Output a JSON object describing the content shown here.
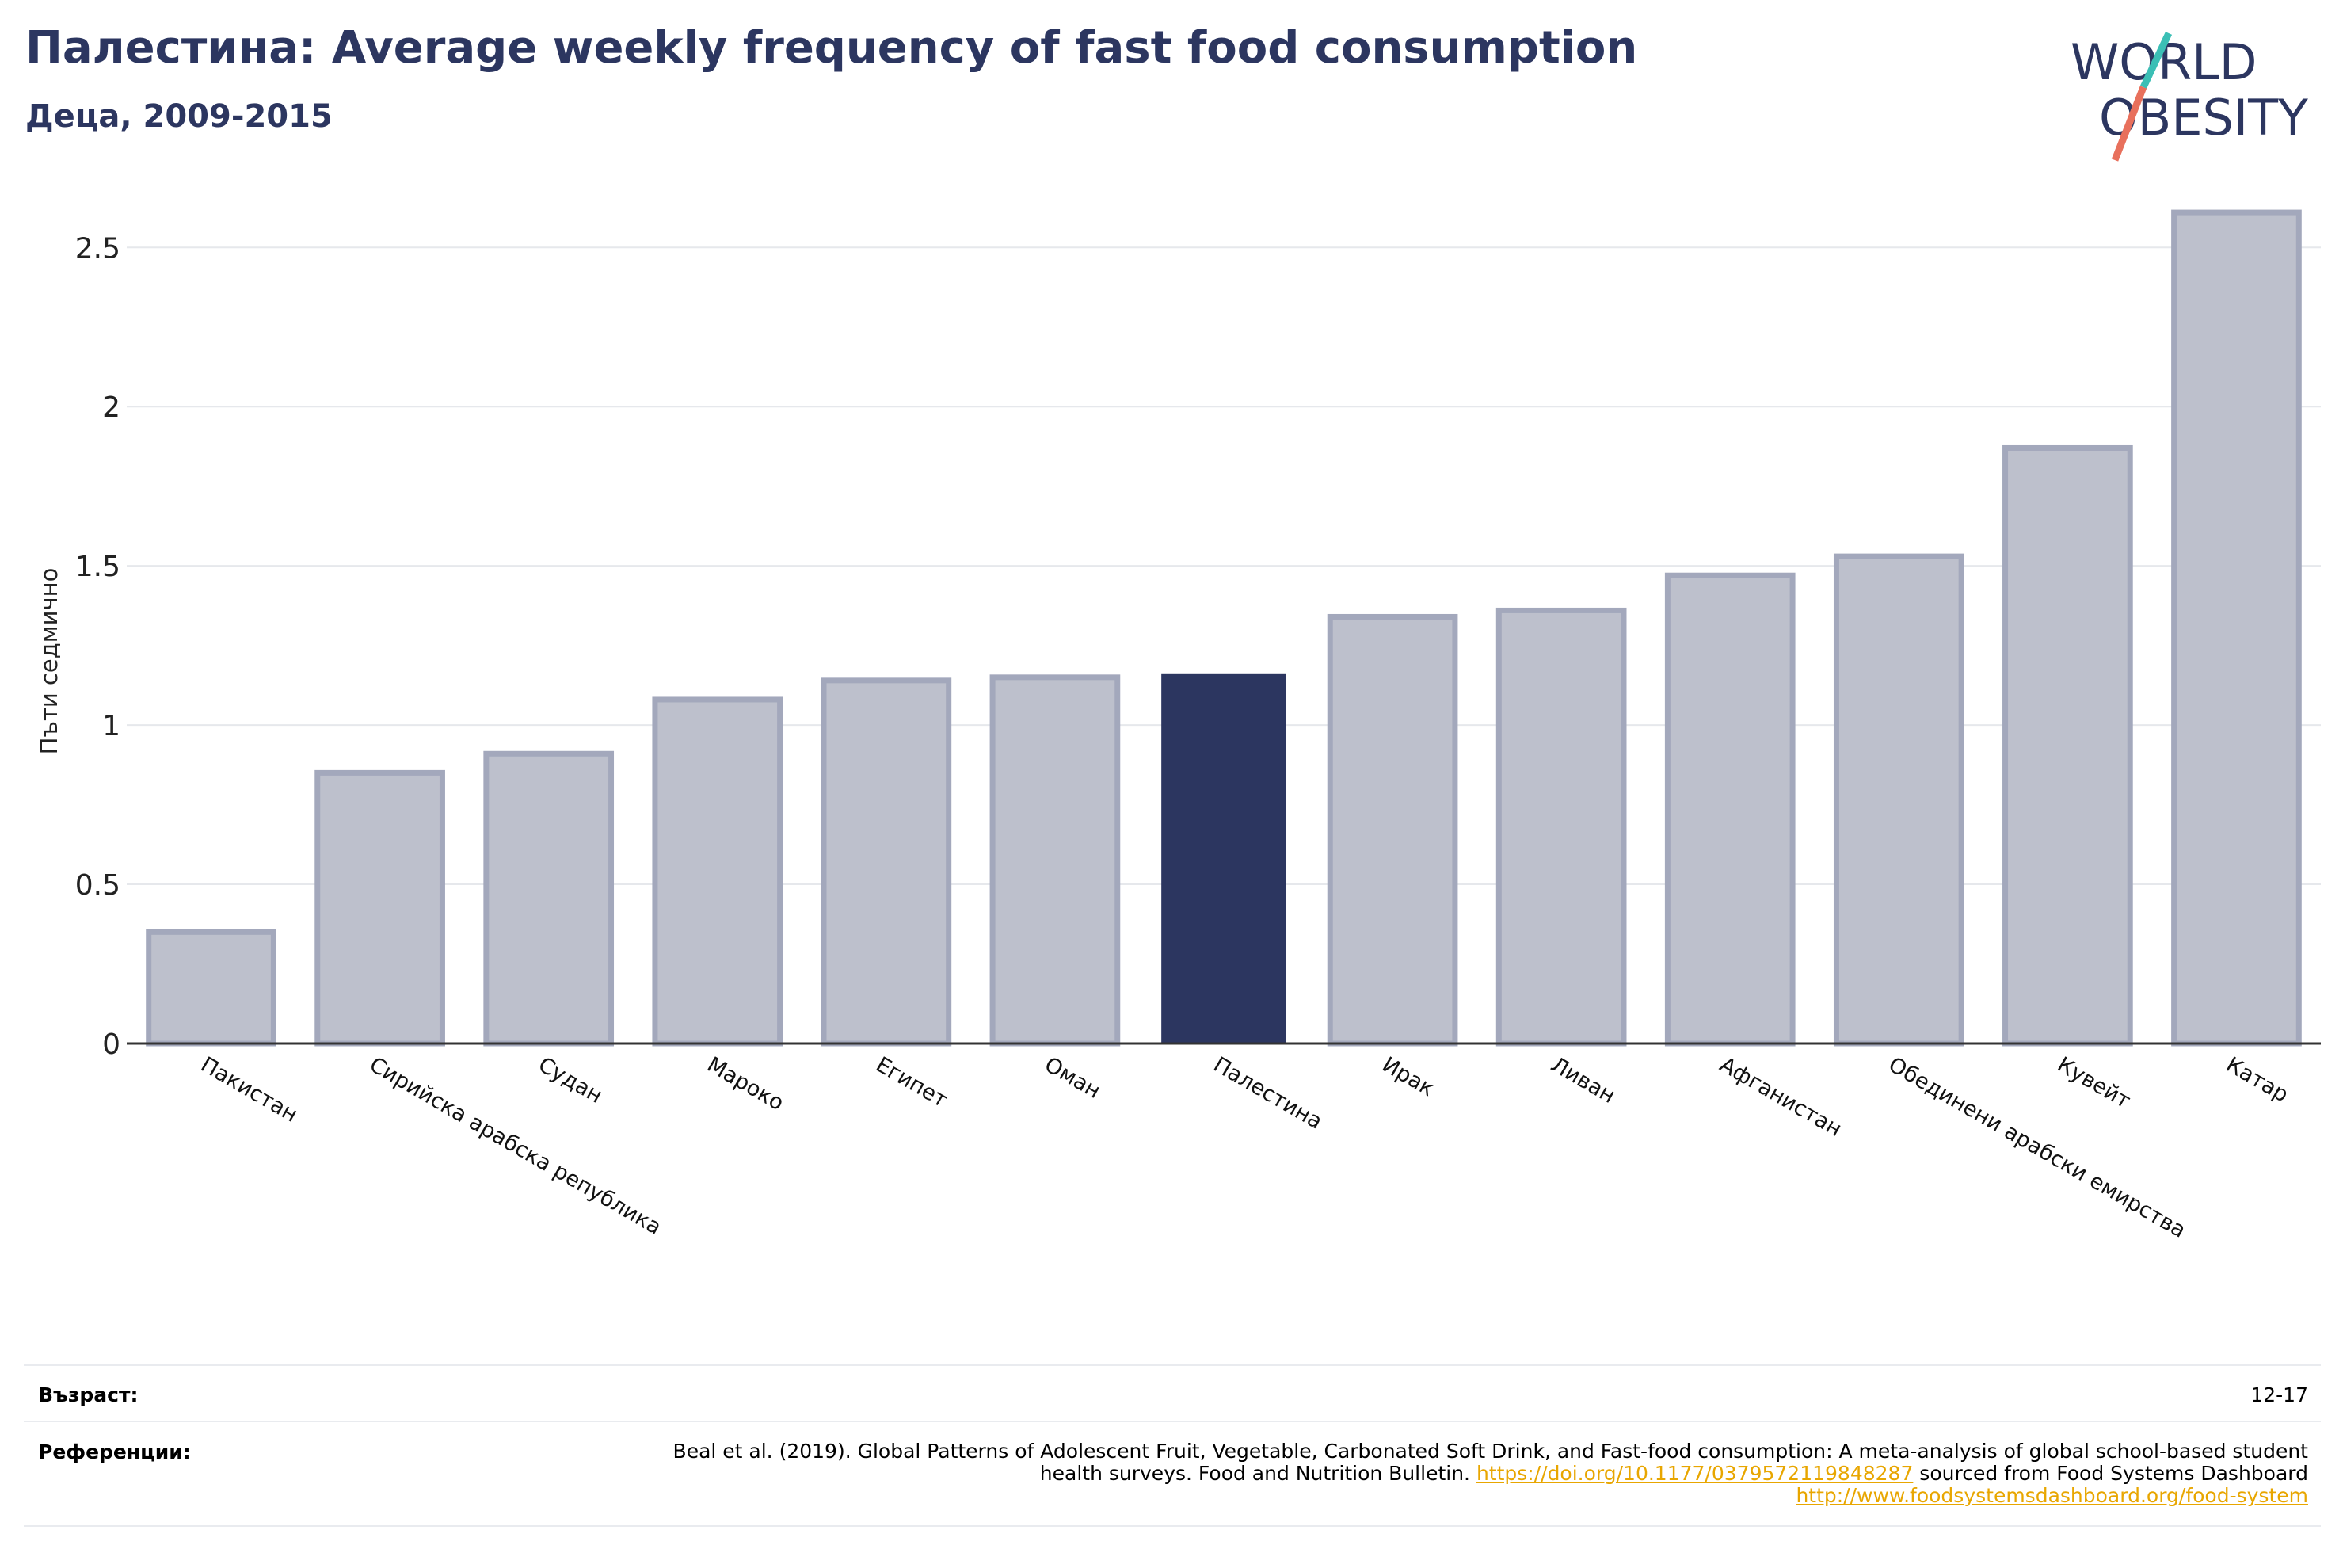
{
  "header": {
    "title": "Палестина: Average weekly frequency of fast food consumption",
    "subtitle": "Деца, 2009-2015"
  },
  "logo": {
    "line1": "WORLD",
    "line2": "OBESITY",
    "icon": "world-obesity-logo"
  },
  "colors": {
    "highlight": "#2c3660",
    "bar_fill": "#bdc0cc",
    "bar_stroke": "#a3a8bc",
    "logo_navy": "#2c3660",
    "logo_teal": "#3bbfb5",
    "logo_coral": "#e8705c",
    "link": "#e8a600"
  },
  "chart_data": {
    "type": "bar",
    "categories": [
      "Пакистан",
      "Сирийска арабска република",
      "Судан",
      "Мароко",
      "Египет",
      "Оман",
      "Палестина",
      "Ирак",
      "Ливан",
      "Афганистан",
      "Обединени арабски емирства",
      "Кувейт",
      "Катар"
    ],
    "values": [
      0.35,
      0.85,
      0.91,
      1.08,
      1.14,
      1.15,
      1.16,
      1.34,
      1.36,
      1.47,
      1.53,
      1.87,
      2.61
    ],
    "highlight": "Палестина",
    "title": "Палестина: Average weekly frequency of fast food consumption",
    "subtitle": "Деца, 2009-2015",
    "xlabel": "",
    "ylabel": "Пъти седмично",
    "ylim": [
      0,
      2.65
    ],
    "yticks": [
      0,
      0.5,
      1,
      1.5,
      2,
      2.5
    ],
    "ytick_labels": [
      "0",
      "0.5",
      "1",
      "1.5",
      "2",
      "2.5"
    ],
    "grid": true
  },
  "meta": {
    "age_label": "Възраст:",
    "age_value": "12-17",
    "ref_label": "Референции:",
    "ref_text1": "Beal et al. (2019). Global Patterns of Adolescent Fruit, Vegetable, Carbonated Soft Drink, and Fast-food consumption: A meta-analysis of global school-based student health surveys. Food and Nutrition Bulletin. ",
    "ref_link1": "https://doi.org/10.1177/0379572119848287",
    "ref_text2": " sourced from Food Systems Dashboard ",
    "ref_link2": "http://www.foodsystemsdashboard.org/food-system"
  }
}
